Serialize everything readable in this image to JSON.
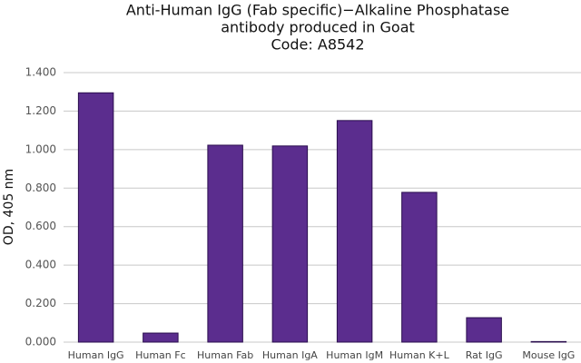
{
  "chart_data": {
    "type": "bar",
    "title": [
      "Anti-Human IgG (Fab specific)−Alkaline Phosphatase",
      "antibody produced in Goat",
      "Code: A8542"
    ],
    "y_label": "OD, 405 nm",
    "categories": [
      "Human IgG",
      "Human Fc",
      "Human Fab",
      "Human IgA",
      "Human IgM",
      "Human K+L",
      "Rat IgG",
      "Mouse IgG"
    ],
    "values": [
      1.295,
      0.047,
      1.023,
      1.019,
      1.151,
      0.778,
      0.127,
      0.003
    ],
    "color": "#5b2d8e",
    "ylim": [
      0,
      1.4
    ],
    "yticks": [
      {
        "value": 0,
        "label": "0.000"
      },
      {
        "value": 0.2,
        "label": "0.200"
      },
      {
        "value": 0.4,
        "label": "0.400"
      },
      {
        "value": 0.6,
        "label": "0.600"
      },
      {
        "value": 0.8,
        "label": "0.800"
      },
      {
        "value": 1.0,
        "label": "1.000"
      },
      {
        "value": 1.2,
        "label": "1.200"
      },
      {
        "value": 1.4,
        "label": "1.400"
      }
    ],
    "grid": true
  }
}
